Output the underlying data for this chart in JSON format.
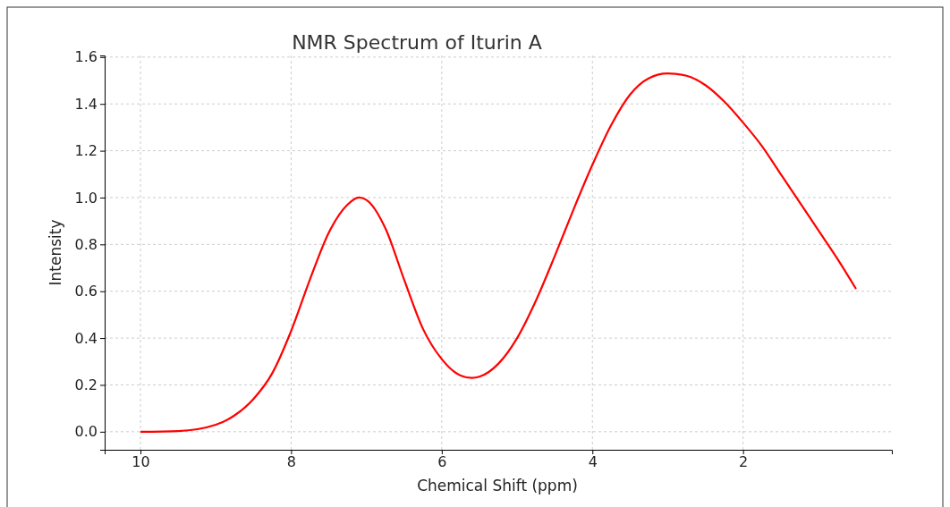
{
  "chart_data": {
    "type": "line",
    "title": "NMR Spectrum of Iturin A",
    "xlabel": "Chemical Shift (ppm)",
    "ylabel": "Intensity",
    "x": [
      10,
      9.5,
      9,
      8.75,
      8.5,
      8.25,
      8,
      7.75,
      7.5,
      7.25,
      7.1,
      7,
      6.75,
      6.5,
      6.25,
      6,
      5.75,
      5.6,
      5.5,
      5.25,
      5,
      4.75,
      4.5,
      4.25,
      4,
      3.75,
      3.5,
      3.25,
      3,
      2.75,
      2.5,
      2.25,
      2,
      1.75,
      1.5,
      1.25,
      1,
      0.75,
      0.5
    ],
    "series": [
      {
        "color": "#ff0000",
        "values": [
          0,
          0.003,
          0.03,
          0.07,
          0.14,
          0.25,
          0.43,
          0.65,
          0.85,
          0.97,
          1.0,
          0.99,
          0.87,
          0.65,
          0.44,
          0.31,
          0.24,
          0.23,
          0.235,
          0.29,
          0.4,
          0.56,
          0.75,
          0.95,
          1.14,
          1.31,
          1.44,
          1.51,
          1.53,
          1.52,
          1.48,
          1.41,
          1.32,
          1.22,
          1.1,
          0.98,
          0.86,
          0.74,
          0.61
        ]
      }
    ],
    "xlim": [
      10.475,
      0.025
    ],
    "xticks": [
      10,
      8,
      6,
      4,
      2
    ],
    "ylim": [
      -0.077,
      1.607
    ],
    "yticks": [
      {
        "value": 0,
        "label": "0.0"
      },
      {
        "value": 0.2,
        "label": "0.2"
      },
      {
        "value": 0.4,
        "label": "0.4"
      },
      {
        "value": 0.6,
        "label": "0.6"
      },
      {
        "value": 0.8,
        "label": "0.8"
      },
      {
        "value": 1,
        "label": "1.0"
      },
      {
        "value": 1.2,
        "label": "1.2"
      },
      {
        "value": 1.4,
        "label": "1.4"
      },
      {
        "value": 1.6,
        "label": "1.6"
      }
    ],
    "grid": true,
    "line_style": "solid",
    "marker": "none"
  }
}
